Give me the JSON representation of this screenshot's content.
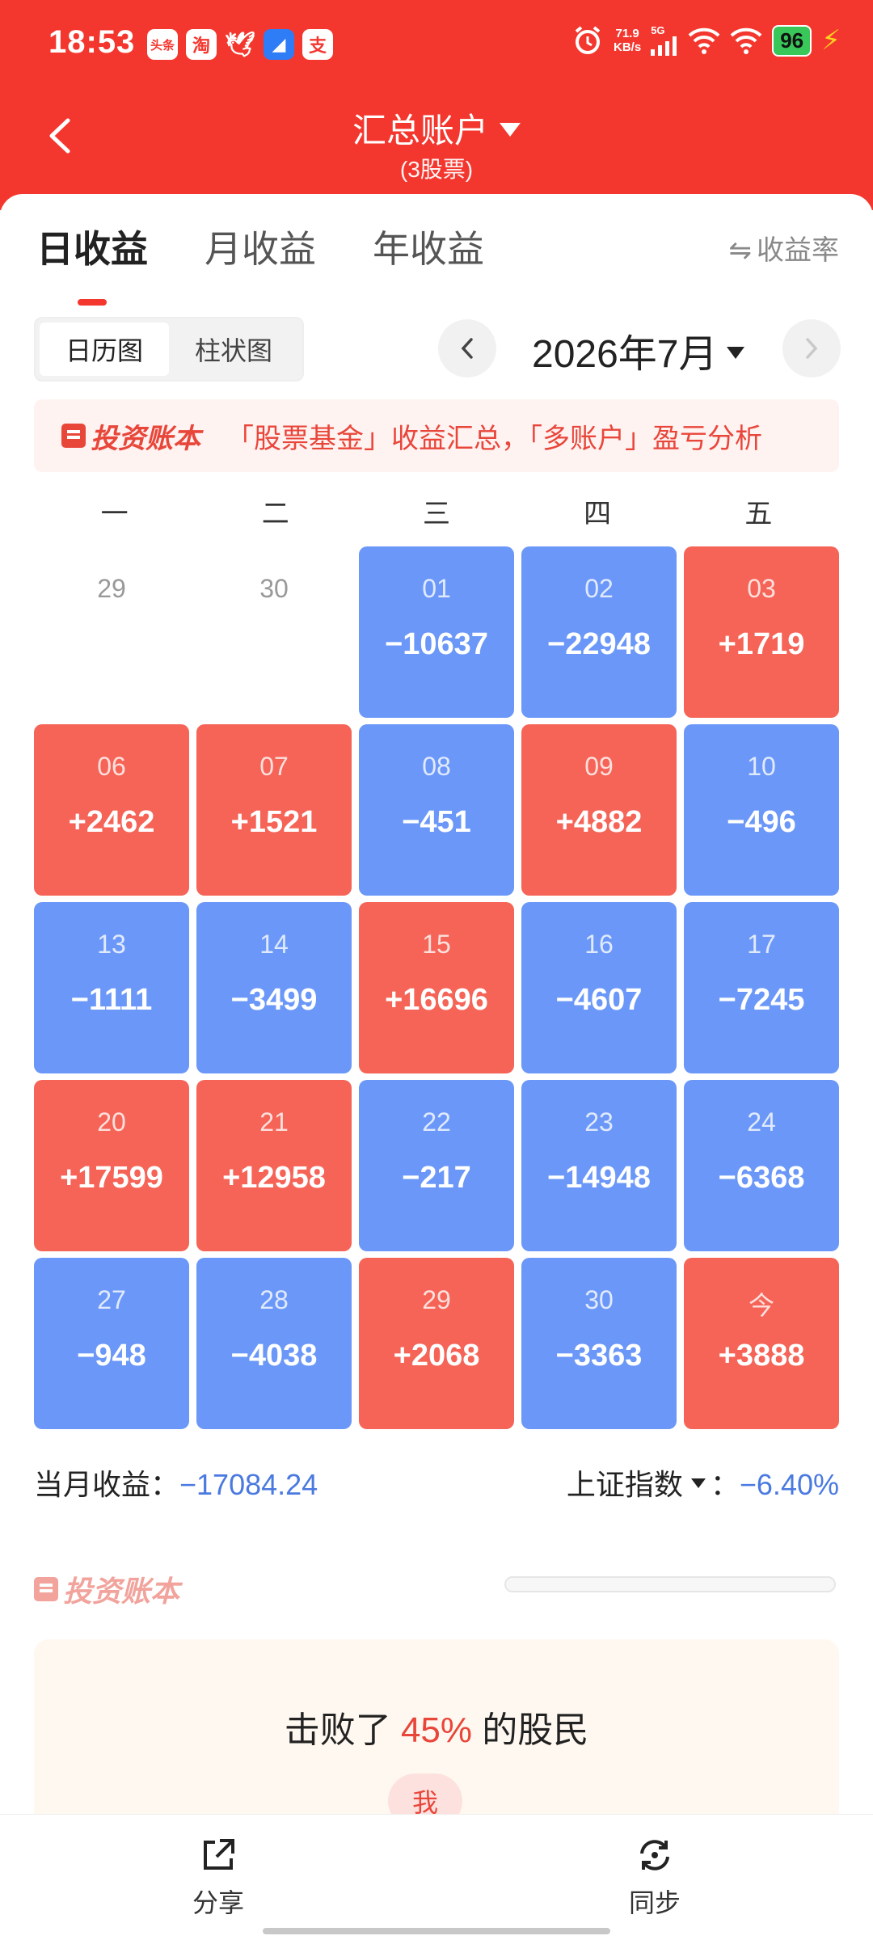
{
  "status_bar": {
    "time": "18:53",
    "app_icons": [
      "头条",
      "淘",
      "🕊",
      "◢",
      "支"
    ],
    "net_speed_value": "71.9",
    "net_speed_unit": "KB/s",
    "network": "5G",
    "battery": "96"
  },
  "nav": {
    "title": "汇总账户",
    "subtitle": "(3股票)"
  },
  "tabs": [
    {
      "label": "日收益",
      "active": true
    },
    {
      "label": "月收益",
      "active": false
    },
    {
      "label": "年收益",
      "active": false
    }
  ],
  "rate_toggle": {
    "icon": "⇋",
    "label": "收益率"
  },
  "view_toggle": {
    "calendar": "日历图",
    "bar": "柱状图"
  },
  "month_label": "2026年7月",
  "banner": {
    "brand": "投资账本",
    "text": "「股票基金」收益汇总，「多账户」盈亏分析"
  },
  "weekdays": [
    "一",
    "二",
    "三",
    "四",
    "五"
  ],
  "calendar": [
    {
      "day": "29",
      "value": "",
      "type": "empty"
    },
    {
      "day": "30",
      "value": "",
      "type": "empty"
    },
    {
      "day": "01",
      "value": "−10637",
      "type": "down"
    },
    {
      "day": "02",
      "value": "−22948",
      "type": "down"
    },
    {
      "day": "03",
      "value": "+1719",
      "type": "up"
    },
    {
      "day": "06",
      "value": "+2462",
      "type": "up"
    },
    {
      "day": "07",
      "value": "+1521",
      "type": "up"
    },
    {
      "day": "08",
      "value": "−451",
      "type": "down"
    },
    {
      "day": "09",
      "value": "+4882",
      "type": "up"
    },
    {
      "day": "10",
      "value": "−496",
      "type": "down"
    },
    {
      "day": "13",
      "value": "−1111",
      "type": "down"
    },
    {
      "day": "14",
      "value": "−3499",
      "type": "down"
    },
    {
      "day": "15",
      "value": "+16696",
      "type": "up"
    },
    {
      "day": "16",
      "value": "−4607",
      "type": "down"
    },
    {
      "day": "17",
      "value": "−7245",
      "type": "down"
    },
    {
      "day": "20",
      "value": "+17599",
      "type": "up"
    },
    {
      "day": "21",
      "value": "+12958",
      "type": "up"
    },
    {
      "day": "22",
      "value": "−217",
      "type": "down"
    },
    {
      "day": "23",
      "value": "−14948",
      "type": "down"
    },
    {
      "day": "24",
      "value": "−6368",
      "type": "down"
    },
    {
      "day": "27",
      "value": "−948",
      "type": "down"
    },
    {
      "day": "28",
      "value": "−4038",
      "type": "down"
    },
    {
      "day": "29",
      "value": "+2068",
      "type": "up"
    },
    {
      "day": "30",
      "value": "−3363",
      "type": "down"
    },
    {
      "day": "今",
      "value": "+3888",
      "type": "up"
    }
  ],
  "summary": {
    "month_label": "当月收益：",
    "month_value": "−17084.24",
    "index_label": "上证指数",
    "index_sep": "：",
    "index_value": "−6.40%"
  },
  "brand_watermark": "投资账本",
  "beat": {
    "prefix": "击败了 ",
    "percent": "45%",
    "suffix": " 的股民",
    "me_label": "我"
  },
  "bottom": {
    "share": "分享",
    "sync": "同步"
  },
  "colors": {
    "brand_red": "#f4372e",
    "gain": "#f56457",
    "loss": "#6b98f8",
    "loss_text": "#4a79e0"
  }
}
